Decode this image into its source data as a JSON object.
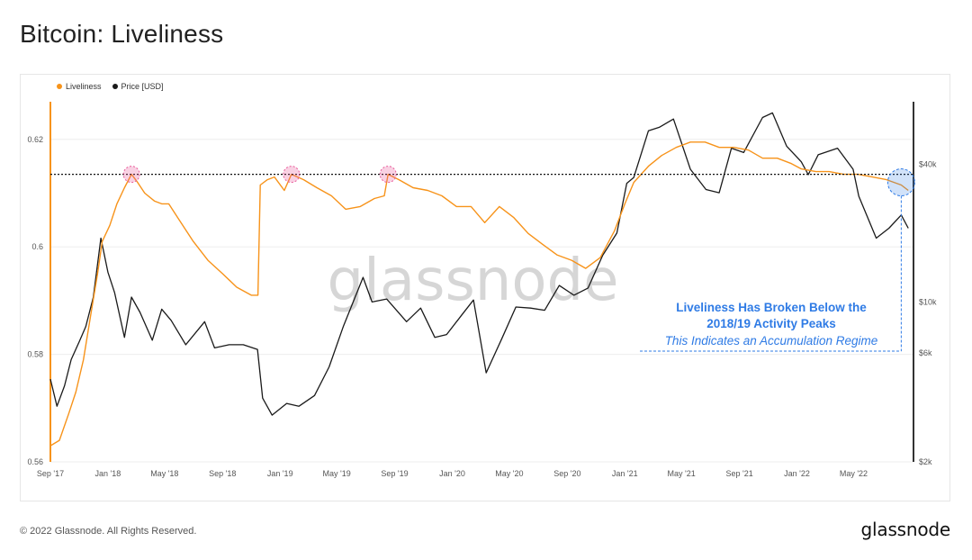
{
  "title": "Bitcoin: Liveliness",
  "footer": {
    "copyright": "© 2022 Glassnode. All Rights Reserved.",
    "logo": "glassnode"
  },
  "watermark": "glassnode",
  "colors": {
    "liveliness": "#f7931a",
    "price": "#1a1a1a",
    "highlight": "#2f7be5",
    "peak_marker": "#e85a9a"
  },
  "chart_data": {
    "type": "line",
    "legend": [
      {
        "name": "Liveliness",
        "color": "#f7931a"
      },
      {
        "name": "Price [USD]",
        "color": "#1a1a1a"
      }
    ],
    "legend_position": "top-left",
    "x_tick_labels": [
      "Sep '17",
      "Jan '18",
      "May '18",
      "Sep '18",
      "Jan '19",
      "May '19",
      "Sep '19",
      "Jan '20",
      "May '20",
      "Sep '20",
      "Jan '21",
      "May '21",
      "Sep '21",
      "Jan '22",
      "May '22"
    ],
    "y_left": {
      "ticks": [
        0.56,
        0.58,
        0.6,
        0.62
      ],
      "tick_labels": [
        "0.56",
        "0.58",
        "0.6",
        "0.62"
      ],
      "ylim": [
        0.56,
        0.627
      ]
    },
    "y_right": {
      "scale": "log",
      "ticks": [
        2000,
        6000,
        10000,
        40000
      ],
      "tick_labels": [
        "$2k",
        "$6k",
        "$10k",
        "$40k"
      ],
      "ylim": [
        2000,
        75000
      ]
    },
    "grid": true,
    "series": [
      {
        "name": "Liveliness",
        "axis": "left",
        "points": [
          [
            "2017-09-01",
            0.563
          ],
          [
            "2017-09-20",
            0.564
          ],
          [
            "2017-10-10",
            0.569
          ],
          [
            "2017-10-25",
            0.573
          ],
          [
            "2017-11-10",
            0.579
          ],
          [
            "2017-11-25",
            0.587
          ],
          [
            "2017-12-10",
            0.595
          ],
          [
            "2017-12-20",
            0.601
          ],
          [
            "2018-01-05",
            0.604
          ],
          [
            "2018-01-20",
            0.608
          ],
          [
            "2018-02-05",
            0.611
          ],
          [
            "2018-02-20",
            0.6135
          ],
          [
            "2018-03-05",
            0.612
          ],
          [
            "2018-03-20",
            0.61
          ],
          [
            "2018-04-10",
            0.6085
          ],
          [
            "2018-04-25",
            0.608
          ],
          [
            "2018-05-10",
            0.608
          ],
          [
            "2018-06-01",
            0.605
          ],
          [
            "2018-07-01",
            0.601
          ],
          [
            "2018-08-01",
            0.5975
          ],
          [
            "2018-09-01",
            0.595
          ],
          [
            "2018-10-01",
            0.5925
          ],
          [
            "2018-11-01",
            0.591
          ],
          [
            "2018-11-15",
            0.591
          ],
          [
            "2018-11-20",
            0.6115
          ],
          [
            "2018-12-05",
            0.6125
          ],
          [
            "2018-12-20",
            0.613
          ],
          [
            "2019-01-10",
            0.6105
          ],
          [
            "2019-01-25",
            0.6135
          ],
          [
            "2019-02-20",
            0.6125
          ],
          [
            "2019-03-20",
            0.611
          ],
          [
            "2019-04-20",
            0.6095
          ],
          [
            "2019-05-20",
            0.607
          ],
          [
            "2019-06-20",
            0.6075
          ],
          [
            "2019-07-20",
            0.609
          ],
          [
            "2019-08-10",
            0.6095
          ],
          [
            "2019-08-18",
            0.6135
          ],
          [
            "2019-09-10",
            0.6125
          ],
          [
            "2019-10-10",
            0.611
          ],
          [
            "2019-11-10",
            0.6105
          ],
          [
            "2019-12-10",
            0.6095
          ],
          [
            "2020-01-10",
            0.6075
          ],
          [
            "2020-02-10",
            0.6075
          ],
          [
            "2020-03-10",
            0.6045
          ],
          [
            "2020-04-10",
            0.6075
          ],
          [
            "2020-05-10",
            0.6055
          ],
          [
            "2020-06-10",
            0.6025
          ],
          [
            "2020-07-10",
            0.6005
          ],
          [
            "2020-08-10",
            0.5985
          ],
          [
            "2020-09-10",
            0.5975
          ],
          [
            "2020-10-10",
            0.596
          ],
          [
            "2020-11-10",
            0.598
          ],
          [
            "2020-12-10",
            0.603
          ],
          [
            "2021-01-01",
            0.608
          ],
          [
            "2021-01-20",
            0.612
          ],
          [
            "2021-02-20",
            0.615
          ],
          [
            "2021-03-20",
            0.617
          ],
          [
            "2021-04-20",
            0.6185
          ],
          [
            "2021-05-20",
            0.6195
          ],
          [
            "2021-06-20",
            0.6195
          ],
          [
            "2021-07-20",
            0.6185
          ],
          [
            "2021-08-20",
            0.6185
          ],
          [
            "2021-09-20",
            0.618
          ],
          [
            "2021-10-20",
            0.6165
          ],
          [
            "2021-11-20",
            0.6165
          ],
          [
            "2021-12-20",
            0.6155
          ],
          [
            "2022-01-10",
            0.6145
          ],
          [
            "2022-02-10",
            0.614
          ],
          [
            "2022-03-10",
            0.614
          ],
          [
            "2022-04-10",
            0.6135
          ],
          [
            "2022-05-10",
            0.6135
          ],
          [
            "2022-06-10",
            0.613
          ],
          [
            "2022-07-10",
            0.6125
          ],
          [
            "2022-08-10",
            0.6115
          ],
          [
            "2022-08-25",
            0.6105
          ]
        ]
      },
      {
        "name": "Price [USD]",
        "axis": "right",
        "points": [
          [
            "2017-09-01",
            4600
          ],
          [
            "2017-09-15",
            3500
          ],
          [
            "2017-10-01",
            4300
          ],
          [
            "2017-10-15",
            5600
          ],
          [
            "2017-11-01",
            6700
          ],
          [
            "2017-11-15",
            7800
          ],
          [
            "2017-12-01",
            10500
          ],
          [
            "2017-12-17",
            19000
          ],
          [
            "2018-01-01",
            13500
          ],
          [
            "2018-01-15",
            11000
          ],
          [
            "2018-02-05",
            7000
          ],
          [
            "2018-02-20",
            10500
          ],
          [
            "2018-03-10",
            9000
          ],
          [
            "2018-04-05",
            6800
          ],
          [
            "2018-04-25",
            9300
          ],
          [
            "2018-05-15",
            8300
          ],
          [
            "2018-06-15",
            6500
          ],
          [
            "2018-07-25",
            8200
          ],
          [
            "2018-08-15",
            6300
          ],
          [
            "2018-09-15",
            6500
          ],
          [
            "2018-10-15",
            6500
          ],
          [
            "2018-11-14",
            6200
          ],
          [
            "2018-11-25",
            3800
          ],
          [
            "2018-12-15",
            3200
          ],
          [
            "2019-01-15",
            3600
          ],
          [
            "2019-02-10",
            3500
          ],
          [
            "2019-03-15",
            3900
          ],
          [
            "2019-04-15",
            5200
          ],
          [
            "2019-05-15",
            7800
          ],
          [
            "2019-06-26",
            12800
          ],
          [
            "2019-07-15",
            10000
          ],
          [
            "2019-08-15",
            10300
          ],
          [
            "2019-09-26",
            8200
          ],
          [
            "2019-10-26",
            9400
          ],
          [
            "2019-11-25",
            7000
          ],
          [
            "2019-12-20",
            7200
          ],
          [
            "2020-01-20",
            8700
          ],
          [
            "2020-02-15",
            10200
          ],
          [
            "2020-03-13",
            4900
          ],
          [
            "2020-04-15",
            6900
          ],
          [
            "2020-05-15",
            9500
          ],
          [
            "2020-06-15",
            9400
          ],
          [
            "2020-07-15",
            9200
          ],
          [
            "2020-08-15",
            11800
          ],
          [
            "2020-09-15",
            10700
          ],
          [
            "2020-10-15",
            11500
          ],
          [
            "2020-11-15",
            16000
          ],
          [
            "2020-12-15",
            20000
          ],
          [
            "2021-01-05",
            33000
          ],
          [
            "2021-01-20",
            35000
          ],
          [
            "2021-02-20",
            56000
          ],
          [
            "2021-03-15",
            58000
          ],
          [
            "2021-04-14",
            63000
          ],
          [
            "2021-05-20",
            38000
          ],
          [
            "2021-06-22",
            31000
          ],
          [
            "2021-07-20",
            30000
          ],
          [
            "2021-08-15",
            47000
          ],
          [
            "2021-09-10",
            45000
          ],
          [
            "2021-10-20",
            64000
          ],
          [
            "2021-11-10",
            67000
          ],
          [
            "2021-12-10",
            48000
          ],
          [
            "2022-01-10",
            41000
          ],
          [
            "2022-01-25",
            36000
          ],
          [
            "2022-02-15",
            44000
          ],
          [
            "2022-03-28",
            47000
          ],
          [
            "2022-04-30",
            38000
          ],
          [
            "2022-05-12",
            29000
          ],
          [
            "2022-06-18",
            19000
          ],
          [
            "2022-07-15",
            21000
          ],
          [
            "2022-08-10",
            24000
          ],
          [
            "2022-08-25",
            21000
          ]
        ]
      }
    ],
    "reference_line": {
      "value": 0.6135,
      "style": "dotted"
    },
    "peak_markers": [
      [
        "2018-02-20",
        0.6135
      ],
      [
        "2019-01-25",
        0.6135
      ],
      [
        "2019-08-18",
        0.6135
      ]
    ],
    "current_marker": [
      "2022-08-10",
      0.612
    ],
    "annotations": [
      "Liveliness Has Broken Below the",
      "2018/19 Activity Peaks",
      "This Indicates an Accumulation Regime"
    ]
  }
}
